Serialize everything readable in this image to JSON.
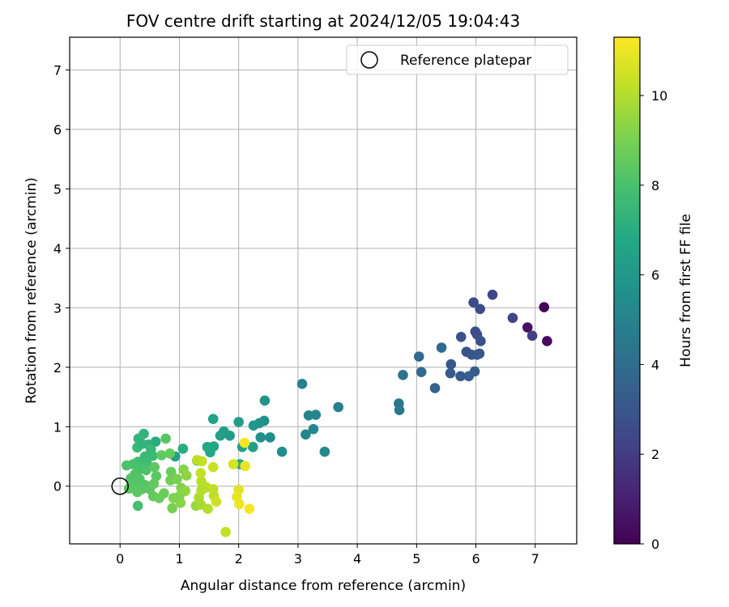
{
  "chart_data": {
    "type": "scatter",
    "title": "FOV centre drift starting at 2024/12/05 19:04:43",
    "xlabel": "Angular distance from reference (arcmin)",
    "ylabel": "Rotation from reference (arcmin)",
    "xlim": [
      -0.85,
      7.7
    ],
    "ylim": [
      -0.97,
      7.55
    ],
    "xticks": [
      0,
      1,
      2,
      3,
      4,
      5,
      6,
      7
    ],
    "yticks": [
      0,
      1,
      2,
      3,
      4,
      5,
      6,
      7
    ],
    "grid": true,
    "legend": {
      "position": "top-right",
      "entries": [
        {
          "label": "Reference platepar",
          "marker": "open-circle"
        }
      ]
    },
    "reference_point": {
      "x": 0,
      "y": 0
    },
    "colorbar": {
      "label": "Hours from first FF file",
      "range": [
        0,
        11.3
      ],
      "ticks": [
        0,
        2,
        4,
        6,
        8,
        10
      ],
      "colormap": "viridis"
    },
    "points": [
      {
        "x": 7.15,
        "y": 3.01,
        "h": 0.1
      },
      {
        "x": 7.2,
        "y": 2.44,
        "h": 0.3
      },
      {
        "x": 6.87,
        "y": 2.67,
        "h": 0.5
      },
      {
        "x": 6.95,
        "y": 2.53,
        "h": 2.1
      },
      {
        "x": 6.62,
        "y": 2.83,
        "h": 2.3
      },
      {
        "x": 6.28,
        "y": 3.22,
        "h": 2.4
      },
      {
        "x": 5.96,
        "y": 3.09,
        "h": 2.5
      },
      {
        "x": 6.07,
        "y": 2.98,
        "h": 2.6
      },
      {
        "x": 5.99,
        "y": 2.6,
        "h": 2.7
      },
      {
        "x": 6.02,
        "y": 2.55,
        "h": 2.7
      },
      {
        "x": 6.08,
        "y": 2.44,
        "h": 2.8
      },
      {
        "x": 5.75,
        "y": 2.51,
        "h": 2.9
      },
      {
        "x": 5.84,
        "y": 2.26,
        "h": 2.9
      },
      {
        "x": 5.93,
        "y": 2.21,
        "h": 3.0
      },
      {
        "x": 6.02,
        "y": 2.21,
        "h": 3.0
      },
      {
        "x": 6.06,
        "y": 2.23,
        "h": 3.1
      },
      {
        "x": 5.58,
        "y": 2.05,
        "h": 3.1
      },
      {
        "x": 5.57,
        "y": 1.9,
        "h": 3.2
      },
      {
        "x": 5.74,
        "y": 1.85,
        "h": 3.2
      },
      {
        "x": 5.88,
        "y": 1.85,
        "h": 3.3
      },
      {
        "x": 5.98,
        "y": 1.93,
        "h": 3.3
      },
      {
        "x": 5.42,
        "y": 2.33,
        "h": 3.8
      },
      {
        "x": 5.04,
        "y": 2.18,
        "h": 3.9
      },
      {
        "x": 5.08,
        "y": 1.92,
        "h": 3.9
      },
      {
        "x": 5.31,
        "y": 1.65,
        "h": 3.6
      },
      {
        "x": 4.77,
        "y": 1.87,
        "h": 4.3
      },
      {
        "x": 4.7,
        "y": 1.39,
        "h": 4.4
      },
      {
        "x": 4.71,
        "y": 1.28,
        "h": 4.5
      },
      {
        "x": 3.68,
        "y": 1.33,
        "h": 4.9
      },
      {
        "x": 3.07,
        "y": 1.72,
        "h": 5.0
      },
      {
        "x": 3.18,
        "y": 1.19,
        "h": 5.1
      },
      {
        "x": 3.3,
        "y": 1.2,
        "h": 5.1
      },
      {
        "x": 3.26,
        "y": 0.96,
        "h": 5.2
      },
      {
        "x": 3.13,
        "y": 0.87,
        "h": 5.2
      },
      {
        "x": 3.45,
        "y": 0.58,
        "h": 5.3
      },
      {
        "x": 2.73,
        "y": 0.58,
        "h": 5.5
      },
      {
        "x": 2.44,
        "y": 1.44,
        "h": 5.8
      },
      {
        "x": 2.43,
        "y": 1.1,
        "h": 5.6
      },
      {
        "x": 2.35,
        "y": 1.06,
        "h": 5.7
      },
      {
        "x": 2.25,
        "y": 1.02,
        "h": 5.9
      },
      {
        "x": 2.37,
        "y": 0.82,
        "h": 5.6
      },
      {
        "x": 2.53,
        "y": 0.82,
        "h": 5.5
      },
      {
        "x": 2.24,
        "y": 0.66,
        "h": 6.4
      },
      {
        "x": 2.06,
        "y": 0.66,
        "h": 6.5
      },
      {
        "x": 2.0,
        "y": 1.08,
        "h": 6.3
      },
      {
        "x": 1.85,
        "y": 0.85,
        "h": 6.2
      },
      {
        "x": 1.75,
        "y": 0.92,
        "h": 6.3
      },
      {
        "x": 1.69,
        "y": 0.85,
        "h": 6.4
      },
      {
        "x": 1.57,
        "y": 1.13,
        "h": 6.5
      },
      {
        "x": 1.58,
        "y": 0.67,
        "h": 6.7
      },
      {
        "x": 1.52,
        "y": 0.57,
        "h": 6.7
      },
      {
        "x": 1.47,
        "y": 0.66,
        "h": 6.8
      },
      {
        "x": 1.3,
        "y": 0.43,
        "h": 6.8
      },
      {
        "x": 2.02,
        "y": 0.37,
        "h": 6.9
      },
      {
        "x": 0.93,
        "y": 0.5,
        "h": 6.5
      },
      {
        "x": 1.06,
        "y": 0.63,
        "h": 7.0
      },
      {
        "x": 0.6,
        "y": 0.75,
        "h": 7.0
      },
      {
        "x": 0.4,
        "y": 0.88,
        "h": 7.3
      },
      {
        "x": 0.31,
        "y": 0.8,
        "h": 7.4
      },
      {
        "x": 0.48,
        "y": 0.7,
        "h": 7.2
      },
      {
        "x": 0.52,
        "y": 0.62,
        "h": 7.5
      },
      {
        "x": 0.29,
        "y": 0.65,
        "h": 7.6
      },
      {
        "x": 0.37,
        "y": 0.71,
        "h": 7.3
      },
      {
        "x": 0.42,
        "y": 0.5,
        "h": 7.5
      },
      {
        "x": 0.55,
        "y": 0.51,
        "h": 7.6
      },
      {
        "x": 0.45,
        "y": 0.39,
        "h": 7.8
      },
      {
        "x": 0.3,
        "y": 0.41,
        "h": 7.8
      },
      {
        "x": 0.22,
        "y": 0.37,
        "h": 8.0
      },
      {
        "x": 0.11,
        "y": 0.35,
        "h": 8.1
      },
      {
        "x": 0.32,
        "y": 0.28,
        "h": 8.0
      },
      {
        "x": 0.44,
        "y": 0.27,
        "h": 8.1
      },
      {
        "x": 0.25,
        "y": 0.2,
        "h": 8.2
      },
      {
        "x": 0.18,
        "y": 0.13,
        "h": 8.2
      },
      {
        "x": 0.33,
        "y": 0.12,
        "h": 8.2
      },
      {
        "x": 0.21,
        "y": 0.03,
        "h": 8.3
      },
      {
        "x": 0.27,
        "y": -0.03,
        "h": 8.3
      },
      {
        "x": 0.37,
        "y": -0.05,
        "h": 8.3
      },
      {
        "x": 0.15,
        "y": -0.04,
        "h": 8.4
      },
      {
        "x": 0.29,
        "y": -0.1,
        "h": 8.4
      },
      {
        "x": 0.42,
        "y": 0.02,
        "h": 8.3
      },
      {
        "x": 0.5,
        "y": -0.05,
        "h": 8.4
      },
      {
        "x": 0.3,
        "y": -0.33,
        "h": 7.9
      },
      {
        "x": 0.77,
        "y": 0.8,
        "h": 8.3
      },
      {
        "x": 0.7,
        "y": 0.52,
        "h": 8.5
      },
      {
        "x": 0.84,
        "y": 0.55,
        "h": 8.6
      },
      {
        "x": 0.58,
        "y": 0.32,
        "h": 8.5
      },
      {
        "x": 0.61,
        "y": 0.17,
        "h": 8.4
      },
      {
        "x": 0.57,
        "y": 0.04,
        "h": 8.6
      },
      {
        "x": 0.56,
        "y": -0.17,
        "h": 8.6
      },
      {
        "x": 0.66,
        "y": -0.2,
        "h": 8.7
      },
      {
        "x": 0.74,
        "y": -0.12,
        "h": 8.7
      },
      {
        "x": 0.86,
        "y": 0.24,
        "h": 8.7
      },
      {
        "x": 0.85,
        "y": 0.1,
        "h": 8.8
      },
      {
        "x": 0.96,
        "y": 0.12,
        "h": 9.0
      },
      {
        "x": 1.07,
        "y": 0.28,
        "h": 9.2
      },
      {
        "x": 1.12,
        "y": 0.18,
        "h": 9.4
      },
      {
        "x": 1.03,
        "y": -0.03,
        "h": 9.1
      },
      {
        "x": 1.1,
        "y": -0.08,
        "h": 9.4
      },
      {
        "x": 1.0,
        "y": -0.17,
        "h": 9.2
      },
      {
        "x": 0.9,
        "y": -0.2,
        "h": 9.1
      },
      {
        "x": 0.88,
        "y": -0.37,
        "h": 9.0
      },
      {
        "x": 1.02,
        "y": -0.28,
        "h": 9.3
      },
      {
        "x": 1.28,
        "y": -0.33,
        "h": 9.6
      },
      {
        "x": 1.36,
        "y": -0.31,
        "h": 9.8
      },
      {
        "x": 1.33,
        "y": -0.19,
        "h": 9.9
      },
      {
        "x": 1.37,
        "y": -0.07,
        "h": 10.0
      },
      {
        "x": 1.48,
        "y": -0.38,
        "h": 10.0
      },
      {
        "x": 1.46,
        "y": -0.02,
        "h": 10.1
      },
      {
        "x": 1.57,
        "y": -0.05,
        "h": 10.2
      },
      {
        "x": 1.58,
        "y": -0.16,
        "h": 10.2
      },
      {
        "x": 1.62,
        "y": -0.26,
        "h": 10.4
      },
      {
        "x": 1.37,
        "y": 0.08,
        "h": 10.1
      },
      {
        "x": 1.36,
        "y": 0.22,
        "h": 10.3
      },
      {
        "x": 1.38,
        "y": 0.42,
        "h": 10.3
      },
      {
        "x": 1.3,
        "y": 0.44,
        "h": 10.2
      },
      {
        "x": 1.57,
        "y": 0.32,
        "h": 10.4
      },
      {
        "x": 1.78,
        "y": -0.77,
        "h": 10.3
      },
      {
        "x": 1.91,
        "y": 0.37,
        "h": 10.6
      },
      {
        "x": 2.0,
        "y": -0.06,
        "h": 10.8
      },
      {
        "x": 1.97,
        "y": -0.18,
        "h": 10.9
      },
      {
        "x": 2.01,
        "y": -0.3,
        "h": 11.0
      },
      {
        "x": 2.1,
        "y": 0.73,
        "h": 11.2
      },
      {
        "x": 2.11,
        "y": 0.34,
        "h": 11.0
      },
      {
        "x": 2.18,
        "y": -0.38,
        "h": 11.2
      }
    ]
  }
}
